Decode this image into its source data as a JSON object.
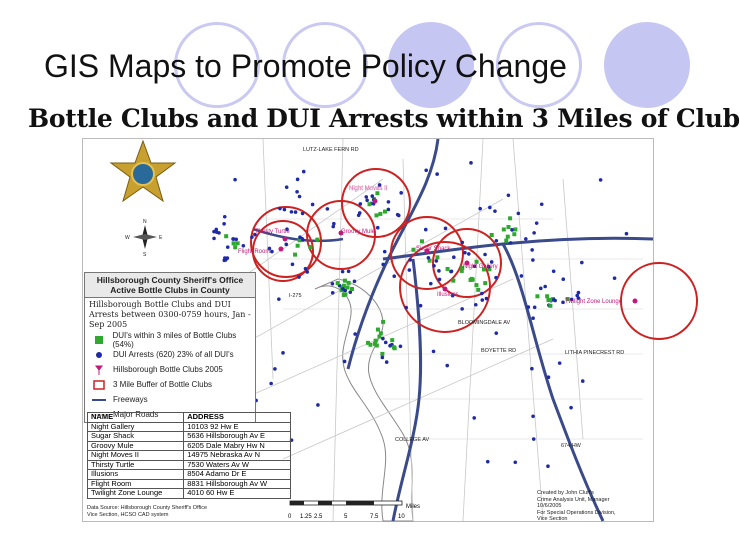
{
  "slide": {
    "title": "GIS Maps to Promote Policy Change",
    "map_title": "Bottle Clubs and DUI Arrests within 3 Miles of Club"
  },
  "legend": {
    "header_line1": "Hillsborough County Sheriff's Office",
    "header_line2": "Active Bottle Clubs in County",
    "subtitle": "Hillsborough Bottle Clubs and DUI Arrests between 0300-0759 hours, Jan - Sep 2005",
    "items": [
      {
        "label": "DUI's within 3 miles of Bottle Clubs (54%)",
        "color": "#2ea82e"
      },
      {
        "label": "DUI Arrests (620) 23% of all DUI's",
        "color": "#1f2aa8"
      },
      {
        "label": "Hillsborough Bottle Clubs 2005",
        "color": "#c2187a"
      },
      {
        "label": "3 Mile Buffer of Bottle Clubs",
        "color": "#cc2222"
      },
      {
        "label": "Freeways",
        "color": "#3a4a8a"
      },
      {
        "label": "Major Roads",
        "color": "#9a9a9a"
      }
    ]
  },
  "clubs_table": {
    "headers": [
      "NAME",
      "ADDRESS"
    ],
    "rows": [
      [
        "Night Gallery",
        "10103 92 Hw E"
      ],
      [
        "Sugar Shack",
        "5636 Hillsborough Av E"
      ],
      [
        "Groovy Mule",
        "6205 Dale Mabry Hw N"
      ],
      [
        "Night Moves II",
        "14975 Nebraska Av N"
      ],
      [
        "Thirsty Turtle",
        "7530 Waters Av W"
      ],
      [
        "Illusions",
        "8504 Adamo Dr E"
      ],
      [
        "Flight Room",
        "8831 Hillsborough Av W"
      ],
      [
        "Twilight Zone Lounge",
        "4010 60 Hw E"
      ]
    ]
  },
  "club_labels": [
    "Night Moves II",
    "Thirsty Turtle",
    "Groovy Mule",
    "Flight Room",
    "Sugar Shack",
    "Night Gallery",
    "Illusions",
    "Twilight Zone Lounge"
  ],
  "road_labels": [
    "LUTZ-LAKE FERN RD",
    "I-275",
    "BLOOMINGDALE AV",
    "BOYETTE RD",
    "LITHIA PINECREST RD",
    "674 HW",
    "COLLEGE AV"
  ],
  "scale": {
    "ticks": [
      "0",
      "1.25",
      "2.5",
      "5",
      "7.5",
      "10"
    ],
    "unit": "Miles"
  },
  "source": {
    "line1": "Data Source: Hillsborough County Sheriff's Office",
    "line2": "Vice Section, HCSO CAD system"
  },
  "credit": {
    "line1": "Created by John Cluff's",
    "line2": "Crime Analysis Unit, Manager",
    "line3": "10/6/2005",
    "line4": "For Special Operations Division,",
    "line5": "Vice Section"
  },
  "compass": [
    "N",
    "S",
    "E",
    "W"
  ]
}
